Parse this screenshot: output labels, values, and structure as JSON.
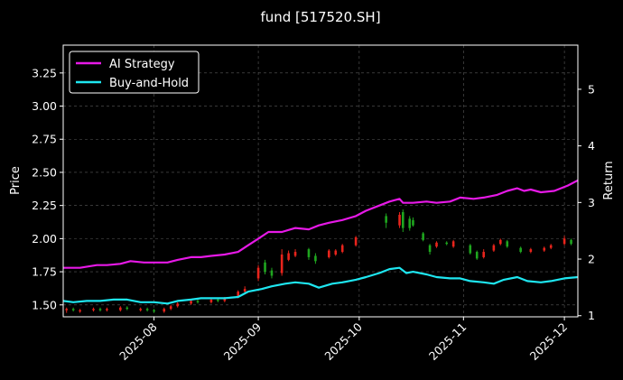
{
  "chart_data": {
    "type": "line",
    "title": "fund [517520.SH]",
    "xlabel": "",
    "ylabel": "Price",
    "y2label": "Return",
    "xlim": [
      "2025-07-05",
      "2025-12-05"
    ],
    "ylim": [
      1.41,
      3.46
    ],
    "y2lim": [
      0.98,
      5.78
    ],
    "x_ticks": [
      "2025-08-01",
      "2025-09-01",
      "2025-10-01",
      "2025-11-01",
      "2025-12-01"
    ],
    "x_tick_labels": [
      "2025-08",
      "2025-09",
      "2025-10",
      "2025-11",
      "2025-12"
    ],
    "y_ticks": [
      1.5,
      1.75,
      2.0,
      2.25,
      2.5,
      2.75,
      3.0,
      3.25
    ],
    "y_tick_labels": [
      "1.50",
      "1.75",
      "2.00",
      "2.25",
      "2.50",
      "2.75",
      "3.00",
      "3.25"
    ],
    "y2_ticks": [
      1,
      2,
      3,
      4,
      5
    ],
    "y2_tick_labels": [
      "1",
      "2",
      "3",
      "4",
      "5"
    ],
    "grid": true,
    "legend_position": "top-left",
    "colors": {
      "ai": "#e619e6",
      "bh": "#1ee6f0",
      "up": "#e8241c",
      "down": "#1fa61f",
      "background": "#000000",
      "foreground": "#ffffff"
    },
    "series": [
      {
        "name": "AI Strategy",
        "axis": "right",
        "points": [
          [
            "2025-07-05",
            1.78
          ],
          [
            "2025-07-10",
            1.78
          ],
          [
            "2025-07-15",
            1.8
          ],
          [
            "2025-07-18",
            1.8
          ],
          [
            "2025-07-22",
            1.81
          ],
          [
            "2025-07-25",
            1.83
          ],
          [
            "2025-07-29",
            1.82
          ],
          [
            "2025-08-05",
            1.82
          ],
          [
            "2025-08-08",
            1.84
          ],
          [
            "2025-08-12",
            1.86
          ],
          [
            "2025-08-15",
            1.86
          ],
          [
            "2025-08-18",
            1.87
          ],
          [
            "2025-08-22",
            1.88
          ],
          [
            "2025-08-26",
            1.9
          ],
          [
            "2025-08-29",
            1.95
          ],
          [
            "2025-09-01",
            2.0
          ],
          [
            "2025-09-04",
            2.05
          ],
          [
            "2025-09-08",
            2.05
          ],
          [
            "2025-09-12",
            2.08
          ],
          [
            "2025-09-16",
            2.07
          ],
          [
            "2025-09-19",
            2.1
          ],
          [
            "2025-09-22",
            2.12
          ],
          [
            "2025-09-26",
            2.14
          ],
          [
            "2025-09-30",
            2.17
          ],
          [
            "2025-10-03",
            2.21
          ],
          [
            "2025-10-07",
            2.25
          ],
          [
            "2025-10-10",
            2.28
          ],
          [
            "2025-10-13",
            2.3
          ],
          [
            "2025-10-14",
            2.27
          ],
          [
            "2025-10-17",
            2.27
          ],
          [
            "2025-10-21",
            2.28
          ],
          [
            "2025-10-24",
            2.27
          ],
          [
            "2025-10-28",
            2.28
          ],
          [
            "2025-10-31",
            2.31
          ],
          [
            "2025-11-04",
            2.3
          ],
          [
            "2025-11-07",
            2.31
          ],
          [
            "2025-11-11",
            2.33
          ],
          [
            "2025-11-14",
            2.36
          ],
          [
            "2025-11-17",
            2.38
          ],
          [
            "2025-11-19",
            2.36
          ],
          [
            "2025-11-21",
            2.37
          ],
          [
            "2025-11-24",
            2.35
          ],
          [
            "2025-11-28",
            2.36
          ],
          [
            "2025-12-02",
            2.4
          ],
          [
            "2025-12-05",
            2.44
          ]
        ]
      },
      {
        "name": "Buy-and-Hold",
        "axis": "right",
        "points": [
          [
            "2025-07-05",
            1.53
          ],
          [
            "2025-07-08",
            1.52
          ],
          [
            "2025-07-12",
            1.53
          ],
          [
            "2025-07-16",
            1.53
          ],
          [
            "2025-07-20",
            1.54
          ],
          [
            "2025-07-24",
            1.54
          ],
          [
            "2025-07-28",
            1.52
          ],
          [
            "2025-08-01",
            1.52
          ],
          [
            "2025-08-05",
            1.51
          ],
          [
            "2025-08-08",
            1.53
          ],
          [
            "2025-08-12",
            1.54
          ],
          [
            "2025-08-15",
            1.55
          ],
          [
            "2025-08-19",
            1.55
          ],
          [
            "2025-08-22",
            1.55
          ],
          [
            "2025-08-26",
            1.56
          ],
          [
            "2025-08-29",
            1.6
          ],
          [
            "2025-09-02",
            1.62
          ],
          [
            "2025-09-05",
            1.64
          ],
          [
            "2025-09-09",
            1.66
          ],
          [
            "2025-09-12",
            1.67
          ],
          [
            "2025-09-16",
            1.66
          ],
          [
            "2025-09-19",
            1.63
          ],
          [
            "2025-09-23",
            1.66
          ],
          [
            "2025-09-26",
            1.67
          ],
          [
            "2025-09-30",
            1.69
          ],
          [
            "2025-10-03",
            1.71
          ],
          [
            "2025-10-07",
            1.74
          ],
          [
            "2025-10-10",
            1.77
          ],
          [
            "2025-10-13",
            1.78
          ],
          [
            "2025-10-15",
            1.74
          ],
          [
            "2025-10-17",
            1.75
          ],
          [
            "2025-10-21",
            1.73
          ],
          [
            "2025-10-24",
            1.71
          ],
          [
            "2025-10-28",
            1.7
          ],
          [
            "2025-10-31",
            1.7
          ],
          [
            "2025-11-03",
            1.68
          ],
          [
            "2025-11-07",
            1.67
          ],
          [
            "2025-11-10",
            1.66
          ],
          [
            "2025-11-13",
            1.69
          ],
          [
            "2025-11-17",
            1.71
          ],
          [
            "2025-11-20",
            1.68
          ],
          [
            "2025-11-24",
            1.67
          ],
          [
            "2025-11-27",
            1.68
          ],
          [
            "2025-12-01",
            1.7
          ],
          [
            "2025-12-05",
            1.71
          ]
        ]
      }
    ],
    "candles": [
      [
        "2025-07-06",
        1.46,
        1.47,
        1.44,
        1.48
      ],
      [
        "2025-07-08",
        1.47,
        1.46,
        1.45,
        1.48
      ],
      [
        "2025-07-10",
        1.45,
        1.46,
        1.44,
        1.47
      ],
      [
        "2025-07-14",
        1.46,
        1.47,
        1.45,
        1.48
      ],
      [
        "2025-07-16",
        1.47,
        1.46,
        1.45,
        1.48
      ],
      [
        "2025-07-18",
        1.46,
        1.47,
        1.45,
        1.48
      ],
      [
        "2025-07-22",
        1.46,
        1.48,
        1.45,
        1.49
      ],
      [
        "2025-07-24",
        1.48,
        1.47,
        1.46,
        1.49
      ],
      [
        "2025-07-28",
        1.46,
        1.47,
        1.45,
        1.48
      ],
      [
        "2025-07-30",
        1.47,
        1.46,
        1.45,
        1.48
      ],
      [
        "2025-08-01",
        1.46,
        1.45,
        1.44,
        1.47
      ],
      [
        "2025-08-04",
        1.45,
        1.47,
        1.44,
        1.48
      ],
      [
        "2025-08-06",
        1.47,
        1.49,
        1.46,
        1.5
      ],
      [
        "2025-08-08",
        1.49,
        1.51,
        1.48,
        1.52
      ],
      [
        "2025-08-12",
        1.51,
        1.53,
        1.5,
        1.54
      ],
      [
        "2025-08-14",
        1.53,
        1.52,
        1.51,
        1.54
      ],
      [
        "2025-08-18",
        1.52,
        1.54,
        1.51,
        1.55
      ],
      [
        "2025-08-20",
        1.54,
        1.53,
        1.52,
        1.55
      ],
      [
        "2025-08-22",
        1.53,
        1.55,
        1.52,
        1.56
      ],
      [
        "2025-08-26",
        1.56,
        1.6,
        1.55,
        1.61
      ],
      [
        "2025-08-28",
        1.6,
        1.62,
        1.59,
        1.64
      ],
      [
        "2025-09-01",
        1.7,
        1.78,
        1.68,
        1.8
      ],
      [
        "2025-09-03",
        1.82,
        1.75,
        1.73,
        1.84
      ],
      [
        "2025-09-05",
        1.76,
        1.72,
        1.7,
        1.78
      ],
      [
        "2025-09-08",
        1.74,
        1.88,
        1.72,
        1.92
      ],
      [
        "2025-09-10",
        1.84,
        1.89,
        1.83,
        1.91
      ],
      [
        "2025-09-12",
        1.87,
        1.9,
        1.86,
        1.92
      ],
      [
        "2025-09-16",
        1.92,
        1.86,
        1.84,
        1.93
      ],
      [
        "2025-09-18",
        1.87,
        1.83,
        1.81,
        1.89
      ],
      [
        "2025-09-22",
        1.86,
        1.91,
        1.85,
        1.92
      ],
      [
        "2025-09-24",
        1.88,
        1.91,
        1.87,
        1.92
      ],
      [
        "2025-09-26",
        1.9,
        1.95,
        1.89,
        1.96
      ],
      [
        "2025-09-30",
        1.95,
        2.01,
        1.94,
        2.02
      ],
      [
        "2025-10-09",
        2.17,
        2.12,
        2.08,
        2.19
      ],
      [
        "2025-10-13",
        2.1,
        2.18,
        2.08,
        2.2
      ],
      [
        "2025-10-14",
        2.2,
        2.08,
        2.05,
        2.22
      ],
      [
        "2025-10-16",
        2.15,
        2.08,
        2.06,
        2.17
      ],
      [
        "2025-10-17",
        2.14,
        2.1,
        2.09,
        2.16
      ],
      [
        "2025-10-20",
        2.04,
        1.99,
        1.98,
        2.05
      ],
      [
        "2025-10-22",
        1.95,
        1.9,
        1.88,
        1.96
      ],
      [
        "2025-10-24",
        1.94,
        1.97,
        1.93,
        1.98
      ],
      [
        "2025-10-27",
        1.97,
        1.96,
        1.95,
        1.98
      ],
      [
        "2025-10-29",
        1.94,
        1.98,
        1.93,
        1.99
      ],
      [
        "2025-11-03",
        1.95,
        1.89,
        1.88,
        1.96
      ],
      [
        "2025-11-05",
        1.9,
        1.85,
        1.84,
        1.91
      ],
      [
        "2025-11-07",
        1.86,
        1.9,
        1.85,
        1.92
      ],
      [
        "2025-11-10",
        1.91,
        1.95,
        1.9,
        1.96
      ],
      [
        "2025-11-12",
        1.96,
        1.99,
        1.95,
        2.0
      ],
      [
        "2025-11-14",
        1.98,
        1.94,
        1.93,
        1.99
      ],
      [
        "2025-11-18",
        1.93,
        1.9,
        1.89,
        1.94
      ],
      [
        "2025-11-21",
        1.9,
        1.92,
        1.89,
        1.93
      ],
      [
        "2025-11-25",
        1.91,
        1.93,
        1.9,
        1.94
      ],
      [
        "2025-11-27",
        1.93,
        1.95,
        1.92,
        1.96
      ],
      [
        "2025-12-01",
        1.96,
        2.0,
        1.95,
        2.02
      ],
      [
        "2025-12-03",
        1.99,
        1.96,
        1.95,
        2.0
      ]
    ]
  }
}
